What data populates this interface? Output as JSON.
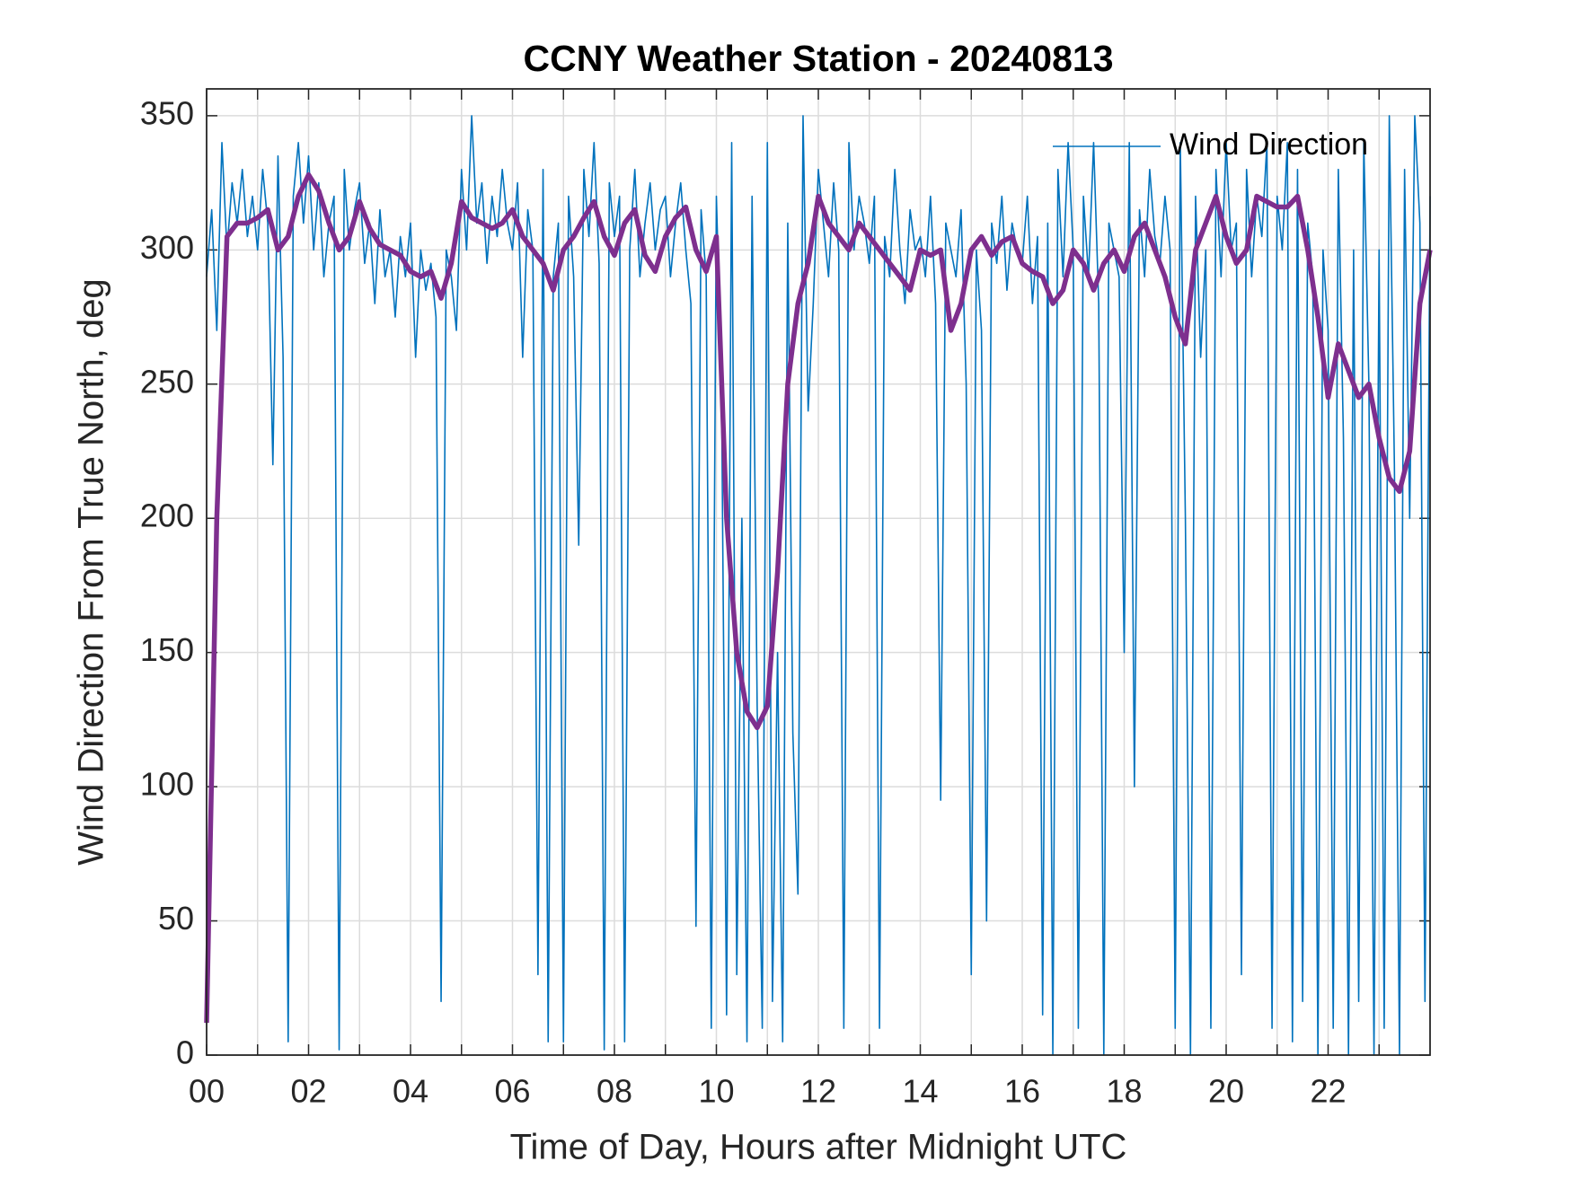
{
  "chart_data": {
    "type": "line",
    "title": "CCNY Weather Station - 20240813",
    "xlabel": "Time of Day, Hours after Midnight UTC",
    "ylabel": "Wind Direction From True North, deg",
    "xlim": [
      0,
      24
    ],
    "xticks": [
      {
        "value": 0,
        "label": "00"
      },
      {
        "value": 2,
        "label": "02"
      },
      {
        "value": 4,
        "label": "04"
      },
      {
        "value": 6,
        "label": "06"
      },
      {
        "value": 8,
        "label": "08"
      },
      {
        "value": 10,
        "label": "10"
      },
      {
        "value": 12,
        "label": "12"
      },
      {
        "value": 14,
        "label": "14"
      },
      {
        "value": 16,
        "label": "16"
      },
      {
        "value": 18,
        "label": "18"
      },
      {
        "value": 20,
        "label": "20"
      },
      {
        "value": 22,
        "label": "22"
      }
    ],
    "xminorticks": [
      1,
      3,
      5,
      7,
      9,
      11,
      13,
      15,
      17,
      19,
      21,
      23
    ],
    "ylim": [
      0,
      360
    ],
    "yticks": [
      0,
      50,
      100,
      150,
      200,
      250,
      300,
      350
    ],
    "grid": true,
    "legend": "northeast",
    "series": [
      {
        "name": "Wind Direction",
        "color": "#0072bd",
        "x": [
          0,
          0.1,
          0.2,
          0.3,
          0.4,
          0.5,
          0.6,
          0.7,
          0.8,
          0.9,
          1,
          1.1,
          1.2,
          1.3,
          1.4,
          1.5,
          1.6,
          1.7,
          1.8,
          1.9,
          2,
          2.1,
          2.2,
          2.3,
          2.4,
          2.5,
          2.6,
          2.7,
          2.8,
          2.9,
          3,
          3.1,
          3.2,
          3.3,
          3.4,
          3.5,
          3.6,
          3.7,
          3.8,
          3.9,
          4,
          4.1,
          4.2,
          4.3,
          4.4,
          4.5,
          4.6,
          4.7,
          4.8,
          4.9,
          5,
          5.1,
          5.2,
          5.3,
          5.4,
          5.5,
          5.6,
          5.7,
          5.8,
          5.9,
          6,
          6.1,
          6.2,
          6.3,
          6.4,
          6.5,
          6.6,
          6.7,
          6.8,
          6.9,
          7,
          7.1,
          7.2,
          7.3,
          7.4,
          7.5,
          7.6,
          7.7,
          7.8,
          7.9,
          8,
          8.1,
          8.2,
          8.3,
          8.4,
          8.5,
          8.6,
          8.7,
          8.8,
          8.9,
          9,
          9.1,
          9.2,
          9.3,
          9.4,
          9.5,
          9.6,
          9.7,
          9.8,
          9.9,
          10,
          10.1,
          10.2,
          10.3,
          10.4,
          10.5,
          10.6,
          10.7,
          10.8,
          10.9,
          11,
          11.1,
          11.2,
          11.3,
          11.4,
          11.5,
          11.6,
          11.7,
          11.8,
          11.9,
          12,
          12.1,
          12.2,
          12.3,
          12.4,
          12.5,
          12.6,
          12.7,
          12.8,
          12.9,
          13,
          13.1,
          13.2,
          13.3,
          13.4,
          13.5,
          13.6,
          13.7,
          13.8,
          13.9,
          14,
          14.1,
          14.2,
          14.3,
          14.4,
          14.5,
          14.6,
          14.7,
          14.8,
          14.9,
          15,
          15.1,
          15.2,
          15.3,
          15.4,
          15.5,
          15.6,
          15.7,
          15.8,
          15.9,
          16,
          16.1,
          16.2,
          16.3,
          16.4,
          16.5,
          16.6,
          16.7,
          16.8,
          16.9,
          17,
          17.1,
          17.2,
          17.3,
          17.4,
          17.5,
          17.6,
          17.7,
          17.8,
          17.9,
          18,
          18.1,
          18.2,
          18.3,
          18.4,
          18.5,
          18.6,
          18.7,
          18.8,
          18.9,
          19,
          19.1,
          19.2,
          19.3,
          19.4,
          19.5,
          19.6,
          19.7,
          19.8,
          19.9,
          20,
          20.1,
          20.2,
          20.3,
          20.4,
          20.5,
          20.6,
          20.7,
          20.8,
          20.9,
          21,
          21.1,
          21.2,
          21.3,
          21.4,
          21.5,
          21.6,
          21.7,
          21.8,
          21.9,
          22,
          22.1,
          22.2,
          22.3,
          22.4,
          22.5,
          22.6,
          22.7,
          22.8,
          22.9,
          23,
          23.1,
          23.2,
          23.3,
          23.4,
          23.5,
          23.6,
          23.7,
          23.8,
          23.9,
          24
        ],
        "values": [
          290,
          315,
          270,
          340,
          300,
          325,
          310,
          330,
          305,
          320,
          300,
          330,
          310,
          220,
          335,
          260,
          5,
          320,
          340,
          310,
          335,
          300,
          325,
          290,
          310,
          320,
          2,
          330,
          300,
          315,
          325,
          295,
          310,
          280,
          315,
          290,
          300,
          275,
          305,
          290,
          310,
          260,
          300,
          285,
          295,
          275,
          20,
          300,
          290,
          270,
          330,
          300,
          350,
          310,
          325,
          295,
          320,
          305,
          330,
          310,
          300,
          325,
          260,
          315,
          300,
          30,
          330,
          5,
          290,
          310,
          5,
          320,
          290,
          190,
          330,
          305,
          340,
          295,
          2,
          325,
          305,
          320,
          5,
          300,
          330,
          290,
          310,
          325,
          300,
          315,
          320,
          290,
          310,
          325,
          300,
          280,
          48,
          315,
          290,
          10,
          320,
          250,
          15,
          340,
          30,
          200,
          5,
          320,
          130,
          10,
          340,
          20,
          150,
          5,
          310,
          120,
          60,
          350,
          240,
          280,
          330,
          310,
          290,
          325,
          300,
          10,
          340,
          300,
          320,
          310,
          295,
          320,
          10,
          305,
          290,
          330,
          300,
          280,
          315,
          300,
          305,
          290,
          320,
          280,
          95,
          310,
          300,
          290,
          315,
          250,
          30,
          300,
          270,
          50,
          310,
          295,
          320,
          285,
          310,
          300,
          295,
          320,
          280,
          305,
          15,
          310,
          0,
          330,
          290,
          340,
          300,
          10,
          320,
          290,
          340,
          280,
          0,
          310,
          300,
          290,
          150,
          340,
          100,
          315,
          290,
          330,
          305,
          295,
          320,
          300,
          10,
          340,
          200,
          0,
          320,
          260,
          300,
          10,
          330,
          290,
          340,
          300,
          310,
          30,
          330,
          290,
          320,
          305,
          340,
          10,
          320,
          300,
          340,
          5,
          330,
          20,
          310,
          290,
          0,
          300,
          270,
          10,
          330,
          230,
          0,
          300,
          20,
          340,
          250,
          0,
          300,
          10,
          350,
          220,
          0,
          330,
          200,
          350,
          310,
          20,
          320
        ]
      },
      {
        "color": "#7e2f8e",
        "x": [
          0,
          0.2,
          0.4,
          0.6,
          0.8,
          1,
          1.2,
          1.4,
          1.6,
          1.8,
          2,
          2.2,
          2.4,
          2.6,
          2.8,
          3,
          3.2,
          3.4,
          3.6,
          3.8,
          4,
          4.2,
          4.4,
          4.6,
          4.8,
          5,
          5.2,
          5.4,
          5.6,
          5.8,
          6,
          6.2,
          6.4,
          6.6,
          6.8,
          7,
          7.2,
          7.4,
          7.6,
          7.8,
          8,
          8.2,
          8.4,
          8.6,
          8.8,
          9,
          9.2,
          9.4,
          9.6,
          9.8,
          10,
          10.2,
          10.4,
          10.6,
          10.8,
          11,
          11.2,
          11.4,
          11.6,
          11.8,
          12,
          12.2,
          12.4,
          12.6,
          12.8,
          13,
          13.2,
          13.4,
          13.6,
          13.8,
          14,
          14.2,
          14.4,
          14.6,
          14.8,
          15,
          15.2,
          15.4,
          15.6,
          15.8,
          16,
          16.2,
          16.4,
          16.6,
          16.8,
          17,
          17.2,
          17.4,
          17.6,
          17.8,
          18,
          18.2,
          18.4,
          18.6,
          18.8,
          19,
          19.2,
          19.4,
          19.6,
          19.8,
          20,
          20.2,
          20.4,
          20.6,
          20.8,
          21,
          21.2,
          21.4,
          21.6,
          21.8,
          22,
          22.2,
          22.4,
          22.6,
          22.8,
          23,
          23.2,
          23.4,
          23.6,
          23.8,
          24
        ],
        "values": [
          12,
          200,
          305,
          310,
          310,
          312,
          315,
          300,
          305,
          320,
          328,
          322,
          310,
          300,
          305,
          318,
          308,
          302,
          300,
          298,
          292,
          290,
          292,
          282,
          295,
          318,
          312,
          310,
          308,
          310,
          315,
          305,
          300,
          295,
          285,
          300,
          305,
          312,
          318,
          305,
          298,
          310,
          315,
          298,
          292,
          305,
          312,
          316,
          300,
          292,
          305,
          200,
          150,
          128,
          122,
          130,
          180,
          250,
          280,
          295,
          320,
          310,
          305,
          300,
          310,
          305,
          300,
          295,
          290,
          285,
          300,
          298,
          300,
          270,
          280,
          300,
          305,
          298,
          303,
          305,
          295,
          292,
          290,
          280,
          285,
          300,
          295,
          285,
          295,
          300,
          292,
          305,
          310,
          300,
          290,
          275,
          265,
          300,
          310,
          320,
          305,
          295,
          300,
          320,
          318,
          316,
          316,
          320,
          300,
          275,
          245,
          265,
          255,
          245,
          250,
          230,
          215,
          210,
          225,
          280,
          300
        ]
      }
    ]
  }
}
